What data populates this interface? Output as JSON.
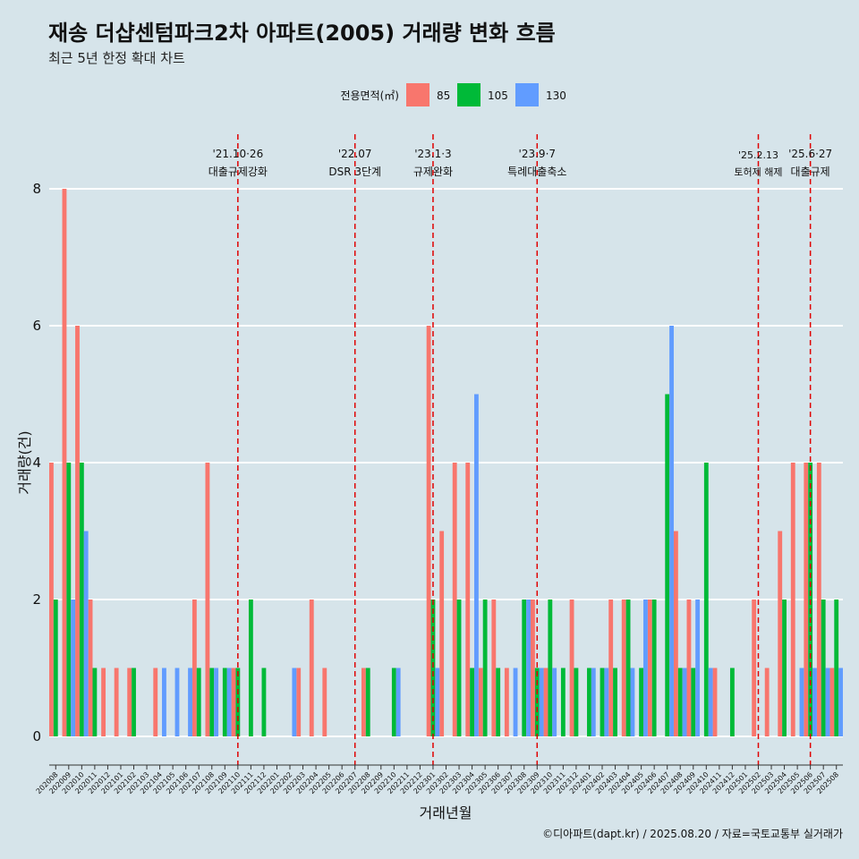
{
  "chart_data": {
    "type": "bar",
    "title": "재송 더샵센텀파크2차 아파트(2005) 거래량 변화 흐름",
    "subtitle": "최근 5년 한정 확대 차트",
    "xlabel": "거래년월",
    "ylabel": "거래량(건)",
    "ylim": [
      0,
      8
    ],
    "yticks": [
      "0",
      "2",
      "4",
      "6",
      "8"
    ],
    "grid": true,
    "legend": {
      "title": "전용면적(㎡)",
      "placement": "top-center"
    },
    "caption": "©디아파트(dapt.kr) / 2025.08.20 / 자료=국토교통부 실거래가",
    "months": [
      "202008",
      "202009",
      "202010",
      "202011",
      "202012",
      "202101",
      "202102",
      "202103",
      "202104",
      "202105",
      "202106",
      "202107",
      "202108",
      "202109",
      "202110",
      "202111",
      "202112",
      "202201",
      "202202",
      "202203",
      "202204",
      "202205",
      "202206",
      "202207",
      "202208",
      "202209",
      "202210",
      "202211",
      "202212",
      "202301",
      "202302",
      "202303",
      "202304",
      "202305",
      "202306",
      "202307",
      "202308",
      "202309",
      "202310",
      "202311",
      "202312",
      "202401",
      "202402",
      "202403",
      "202404",
      "202405",
      "202406",
      "202407",
      "202408",
      "202409",
      "202410",
      "202411",
      "202412",
      "202501",
      "202502",
      "202503",
      "202504",
      "202505",
      "202506",
      "202507",
      "202508"
    ],
    "series": [
      {
        "name": "85",
        "color": "#f8766d",
        "values": [
          4,
          8,
          6,
          2,
          1,
          1,
          1,
          0,
          1,
          0,
          0,
          2,
          4,
          0,
          1,
          0,
          0,
          0,
          0,
          1,
          2,
          1,
          0,
          0,
          1,
          0,
          0,
          0,
          0,
          6,
          3,
          4,
          4,
          1,
          2,
          1,
          0,
          2,
          1,
          0,
          2,
          0,
          0,
          2,
          2,
          0,
          2,
          0,
          3,
          2,
          0,
          1,
          0,
          0,
          2,
          1,
          3,
          4,
          4,
          4,
          1
        ]
      },
      {
        "name": "105",
        "color": "#00ba38",
        "values": [
          2,
          4,
          4,
          1,
          0,
          0,
          1,
          0,
          0,
          0,
          0,
          1,
          1,
          1,
          1,
          2,
          1,
          0,
          0,
          0,
          0,
          0,
          0,
          0,
          1,
          0,
          1,
          0,
          0,
          2,
          0,
          2,
          1,
          2,
          1,
          0,
          2,
          1,
          2,
          1,
          1,
          1,
          1,
          1,
          2,
          1,
          2,
          5,
          1,
          1,
          4,
          0,
          1,
          0,
          0,
          0,
          2,
          0,
          4,
          2,
          2
        ]
      },
      {
        "name": "130",
        "color": "#619cff",
        "values": [
          0,
          2,
          3,
          0,
          0,
          0,
          0,
          0,
          1,
          1,
          1,
          0,
          1,
          1,
          0,
          0,
          0,
          0,
          1,
          0,
          0,
          0,
          0,
          0,
          0,
          0,
          1,
          0,
          0,
          1,
          0,
          0,
          5,
          0,
          0,
          1,
          2,
          1,
          1,
          0,
          0,
          1,
          1,
          0,
          1,
          2,
          0,
          6,
          1,
          2,
          1,
          0,
          0,
          0,
          0,
          0,
          0,
          1,
          1,
          1,
          1
        ]
      }
    ],
    "events": [
      {
        "month": "202110",
        "date": "'21.10·26",
        "label": "대출규제강화"
      },
      {
        "month": "202207",
        "date": "'22.07",
        "label": "DSR 3단계"
      },
      {
        "month": "202301",
        "date": "'23.1·3",
        "label": "규제완화"
      },
      {
        "month": "202309",
        "date": "'23.9·7",
        "label": "특례대출축소"
      },
      {
        "month": "202502",
        "date": "'25.2.13",
        "label": "토허제 해제"
      },
      {
        "month": "202506",
        "date": "'25.6·27",
        "label": "대출규제"
      }
    ]
  }
}
